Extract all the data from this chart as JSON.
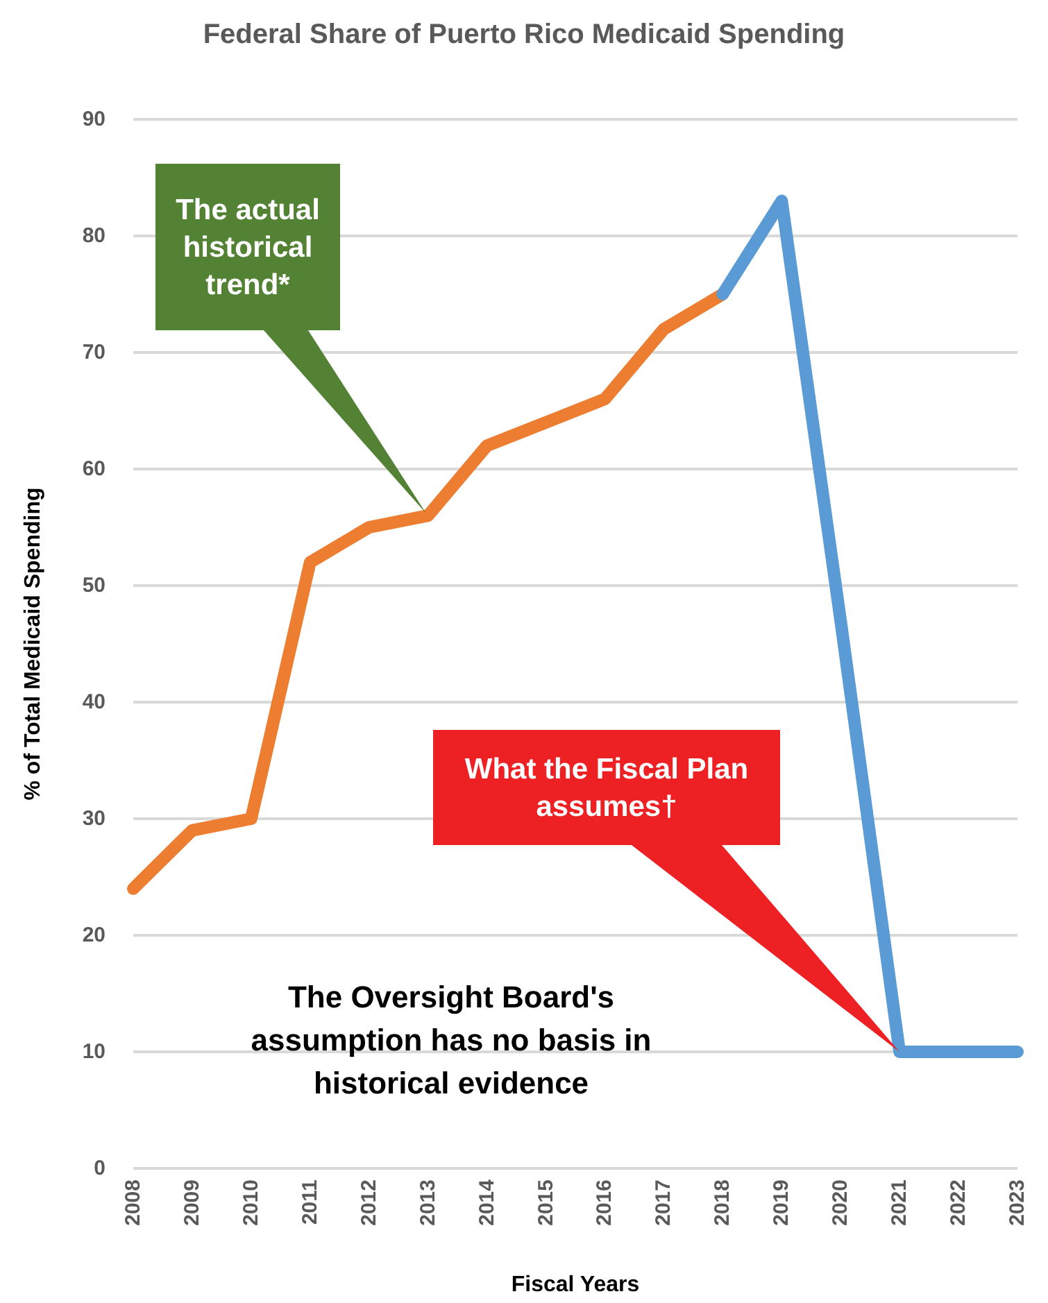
{
  "chart_data": {
    "type": "line",
    "title": "Federal Share of Puerto Rico Medicaid Spending",
    "xlabel": "Fiscal Years",
    "ylabel": "% of Total Medicaid Spending",
    "categories": [
      "2008",
      "2009",
      "2010",
      "2011",
      "2012",
      "2013",
      "2014",
      "2015",
      "2016",
      "2017",
      "2018",
      "2019",
      "2020",
      "2021",
      "2022",
      "2023"
    ],
    "series": [
      {
        "color": "#ed7d31",
        "values": [
          24,
          29,
          30,
          52,
          55,
          56,
          62,
          64,
          66,
          72,
          75,
          null,
          null,
          null,
          null,
          null
        ]
      },
      {
        "color": "#5b9bd5",
        "values": [
          null,
          null,
          null,
          null,
          null,
          null,
          null,
          null,
          null,
          null,
          75,
          83,
          47,
          10,
          10,
          10
        ]
      }
    ],
    "ylim": [
      0,
      90
    ],
    "yticks": [
      0,
      10,
      20,
      30,
      40,
      50,
      60,
      70,
      80,
      90
    ],
    "grid": "y",
    "marker": "none",
    "line_style": "solid",
    "annotations": [
      "The actual historical trend*",
      "What the Fiscal Plan assumes†",
      "The Oversight Board's assumption has no basis in historical evidence"
    ]
  }
}
